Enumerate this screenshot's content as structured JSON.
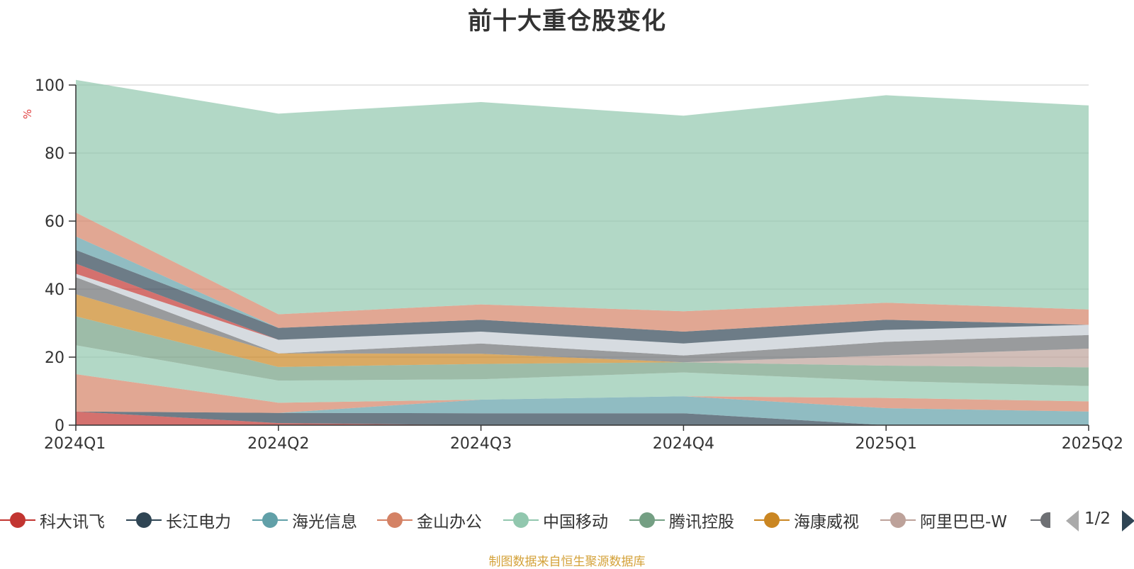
{
  "chart_data": {
    "type": "area",
    "title": "前十大重仓股变化",
    "ylabel": "%",
    "ylim": [
      0,
      100
    ],
    "yticks": [
      0,
      20,
      40,
      60,
      80,
      100
    ],
    "categories": [
      "2024Q1",
      "2024Q2",
      "2024Q3",
      "2024Q4",
      "2025Q1",
      "2025Q2"
    ],
    "stacked": true,
    "grid": true,
    "series": [
      {
        "name": "科大讯飞",
        "color": "#c23531",
        "values": [
          4,
          0.6,
          0,
          0,
          0,
          0
        ]
      },
      {
        "name": "长江电力",
        "color": "#2f4554",
        "values": [
          0,
          3,
          3.5,
          3.5,
          0,
          0
        ]
      },
      {
        "name": "海光信息",
        "color": "#61a0a8",
        "values": [
          0,
          0,
          4,
          5,
          5,
          4
        ]
      },
      {
        "name": "金山办公",
        "color": "#d48265",
        "values": [
          11,
          3,
          0,
          0,
          3,
          3
        ]
      },
      {
        "name": "中国移动",
        "color": "#91c7ae",
        "values": [
          8.5,
          6.5,
          6,
          7,
          5,
          4.5
        ]
      },
      {
        "name": "腾讯控股",
        "color": "#749f83",
        "values": [
          8.5,
          4,
          4.5,
          3,
          4.5,
          5.5
        ]
      },
      {
        "name": "海康威视",
        "color": "#ca8622",
        "values": [
          6.5,
          4,
          3,
          0,
          0,
          0
        ]
      },
      {
        "name": "阿里巴巴-W",
        "color": "#bda29a",
        "values": [
          0,
          0,
          0,
          0,
          3,
          5.5
        ]
      },
      {
        "name": "",
        "color": "#6e7074",
        "values": [
          5,
          0,
          3,
          2,
          4,
          4
        ]
      },
      {
        "name": "",
        "color": "#c4ccd3",
        "values": [
          1,
          4,
          3.5,
          3.5,
          3.5,
          3
        ]
      },
      {
        "name": "",
        "color": "#c23531",
        "values": [
          3,
          0,
          0,
          0,
          0,
          0
        ]
      },
      {
        "name": "",
        "color": "#2f4554",
        "values": [
          4,
          3.5,
          3.5,
          3.5,
          3,
          0
        ]
      },
      {
        "name": "",
        "color": "#61a0a8",
        "values": [
          4,
          0,
          0,
          0,
          0,
          0
        ]
      },
      {
        "name": "",
        "color": "#d48265",
        "values": [
          7,
          4,
          4.5,
          6,
          5,
          4.5
        ]
      },
      {
        "name": "",
        "color": "#91c7ae",
        "values": [
          39,
          59,
          59.5,
          57.5,
          61,
          60
        ]
      }
    ],
    "legend": {
      "visible_items": [
        "科大讯飞",
        "长江电力",
        "海光信息",
        "金山办公",
        "中国移动",
        "腾讯控股",
        "海康威视",
        "阿里巴巴-W"
      ],
      "page": "1/2",
      "placement": "bottom"
    }
  },
  "source_note": "制图数据来自恒生聚源数据库"
}
